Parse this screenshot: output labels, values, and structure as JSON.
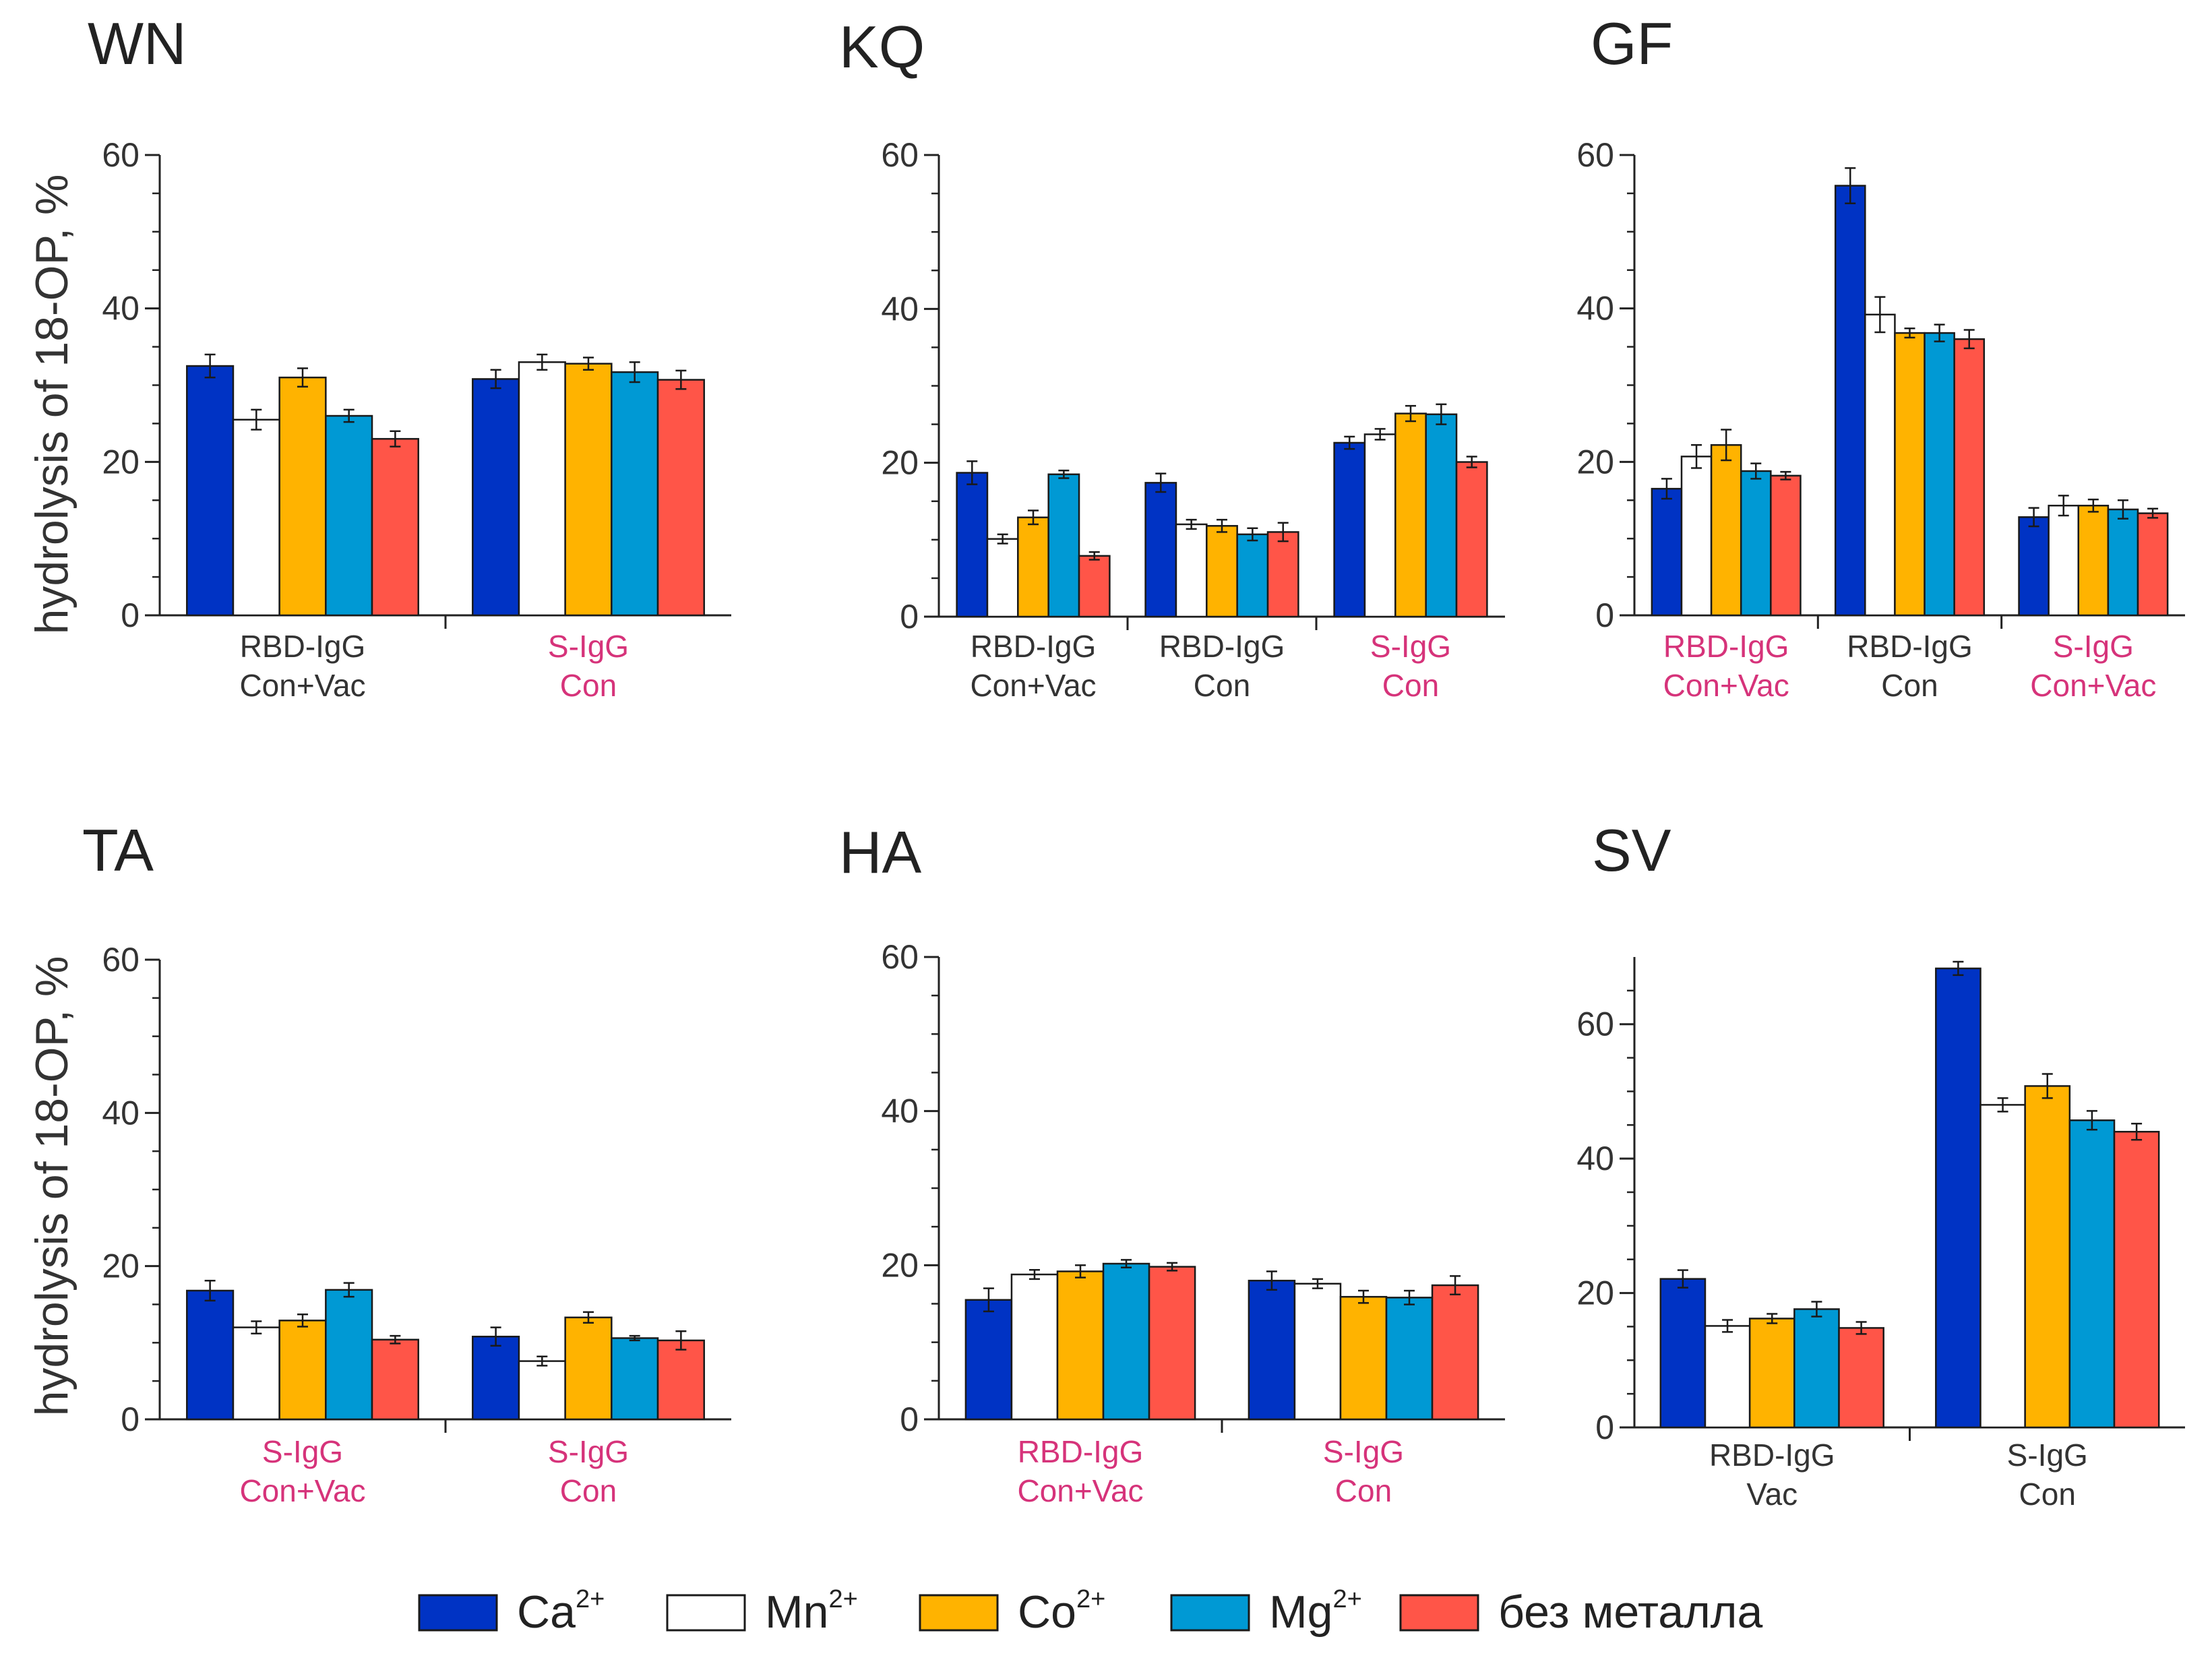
{
  "legend": [
    {
      "key": "ca",
      "label": "Ca",
      "sup": "2+",
      "color": "#0033c4"
    },
    {
      "key": "mn",
      "label": "Mn",
      "sup": "2+",
      "color": "#ffffff"
    },
    {
      "key": "co",
      "label": "Co",
      "sup": "2+",
      "color": "#ffb300"
    },
    {
      "key": "mg",
      "label": "Mg",
      "sup": "2+",
      "color": "#0099d4"
    },
    {
      "key": "none",
      "label": "без металла",
      "sup": "",
      "color": "#ff5548"
    }
  ],
  "ylabel": "hydrolysis of 18-OP, %",
  "highlight_color": "#d6337a",
  "chart_data": [
    {
      "type": "bar",
      "title": "WN",
      "ylabel": "hydrolysis of 18-OP, %",
      "ylim": [
        0,
        60
      ],
      "yticks": [
        0,
        20,
        40,
        60
      ],
      "series_names": [
        "Ca2+",
        "Mn2+",
        "Co2+",
        "Mg2+",
        "без металла"
      ],
      "groups": [
        {
          "label": [
            "RBD-IgG",
            "Con+Vac"
          ],
          "highlight": false,
          "values": [
            32.5,
            25.5,
            31,
            26,
            23
          ],
          "errors": [
            1.5,
            1.3,
            1.2,
            0.8,
            1.0
          ]
        },
        {
          "label": [
            "S-IgG",
            "Con"
          ],
          "highlight": true,
          "values": [
            30.8,
            33,
            32.8,
            31.7,
            30.7
          ],
          "errors": [
            1.2,
            1.0,
            0.8,
            1.3,
            1.2
          ]
        }
      ]
    },
    {
      "type": "bar",
      "title": "KQ",
      "ylabel": "",
      "ylim": [
        0,
        60
      ],
      "yticks": [
        0,
        20,
        40,
        60
      ],
      "series_names": [
        "Ca2+",
        "Mn2+",
        "Co2+",
        "Mg2+",
        "без металла"
      ],
      "groups": [
        {
          "label": [
            "RBD-IgG",
            "Con+Vac"
          ],
          "highlight": false,
          "values": [
            18.7,
            10.1,
            12.9,
            18.5,
            7.9
          ],
          "errors": [
            1.5,
            0.6,
            0.9,
            0.5,
            0.5
          ]
        },
        {
          "label": [
            "RBD-IgG",
            "Con"
          ],
          "highlight": false,
          "values": [
            17.4,
            12,
            11.8,
            10.7,
            11
          ],
          "errors": [
            1.2,
            0.6,
            0.8,
            0.8,
            1.2
          ]
        },
        {
          "label": [
            "S-IgG",
            "Con"
          ],
          "highlight": true,
          "values": [
            22.6,
            23.7,
            26.4,
            26.3,
            20.1
          ],
          "errors": [
            0.8,
            0.7,
            1.0,
            1.3,
            0.7
          ]
        }
      ]
    },
    {
      "type": "bar",
      "title": "GF",
      "ylabel": "",
      "ylim": [
        0,
        60
      ],
      "yticks": [
        0,
        20,
        40,
        60
      ],
      "series_names": [
        "Ca2+",
        "Mn2+",
        "Co2+",
        "Mg2+",
        "без металла"
      ],
      "groups": [
        {
          "label": [
            "RBD-IgG",
            "Con+Vac"
          ],
          "highlight": true,
          "values": [
            16.5,
            20.7,
            22.2,
            18.8,
            18.2
          ],
          "errors": [
            1.3,
            1.5,
            2.0,
            1.0,
            0.5
          ]
        },
        {
          "label": [
            "RBD-IgG",
            "Con"
          ],
          "highlight": false,
          "values": [
            56,
            39.2,
            36.8,
            36.8,
            36
          ],
          "errors": [
            2.3,
            2.3,
            0.6,
            1.1,
            1.2
          ]
        },
        {
          "label": [
            "S-IgG",
            "Con+Vac"
          ],
          "highlight": true,
          "values": [
            12.8,
            14.3,
            14.3,
            13.8,
            13.3
          ],
          "errors": [
            1.2,
            1.3,
            0.8,
            1.2,
            0.6
          ]
        }
      ]
    },
    {
      "type": "bar",
      "title": "TA",
      "ylabel": "hydrolysis of 18-OP, %",
      "ylim": [
        0,
        60
      ],
      "yticks": [
        0,
        20,
        40,
        60
      ],
      "series_names": [
        "Ca2+",
        "Mn2+",
        "Co2+",
        "Mg2+",
        "без металла"
      ],
      "groups": [
        {
          "label": [
            "S-IgG",
            "Con+Vac"
          ],
          "highlight": true,
          "values": [
            16.8,
            12,
            12.9,
            16.9,
            10.4
          ],
          "errors": [
            1.3,
            0.8,
            0.8,
            0.9,
            0.5
          ]
        },
        {
          "label": [
            "S-IgG",
            "Con"
          ],
          "highlight": true,
          "values": [
            10.8,
            7.6,
            13.3,
            10.6,
            10.3
          ],
          "errors": [
            1.2,
            0.6,
            0.7,
            0.3,
            1.2
          ]
        }
      ]
    },
    {
      "type": "bar",
      "title": "HA",
      "ylabel": "",
      "ylim": [
        0,
        60
      ],
      "yticks": [
        0,
        20,
        40,
        60
      ],
      "series_names": [
        "Ca2+",
        "Mn2+",
        "Co2+",
        "Mg2+",
        "без металла"
      ],
      "groups": [
        {
          "label": [
            "RBD-IgG",
            "Con+Vac"
          ],
          "highlight": true,
          "values": [
            15.5,
            18.8,
            19.2,
            20.2,
            19.8
          ],
          "errors": [
            1.5,
            0.6,
            0.8,
            0.5,
            0.5
          ]
        },
        {
          "label": [
            "S-IgG",
            "Con"
          ],
          "highlight": true,
          "values": [
            18,
            17.6,
            15.9,
            15.8,
            17.4
          ],
          "errors": [
            1.2,
            0.6,
            0.8,
            0.9,
            1.2
          ]
        }
      ]
    },
    {
      "type": "bar",
      "title": "SV",
      "ylabel": "",
      "ylim": [
        0,
        70
      ],
      "yticks": [
        0,
        20,
        40,
        60
      ],
      "series_names": [
        "Ca2+",
        "Mn2+",
        "Co2+",
        "Mg2+",
        "без металла"
      ],
      "groups": [
        {
          "label": [
            "RBD-IgG",
            "Vac"
          ],
          "highlight": false,
          "values": [
            22.1,
            15.1,
            16.2,
            17.6,
            14.8
          ],
          "errors": [
            1.3,
            0.9,
            0.7,
            1.1,
            0.9
          ]
        },
        {
          "label": [
            "S-IgG",
            "Con"
          ],
          "highlight": false,
          "values": [
            68.3,
            48,
            50.8,
            45.7,
            44
          ],
          "errors": [
            1.0,
            1.0,
            1.8,
            1.4,
            1.2
          ]
        }
      ]
    }
  ]
}
